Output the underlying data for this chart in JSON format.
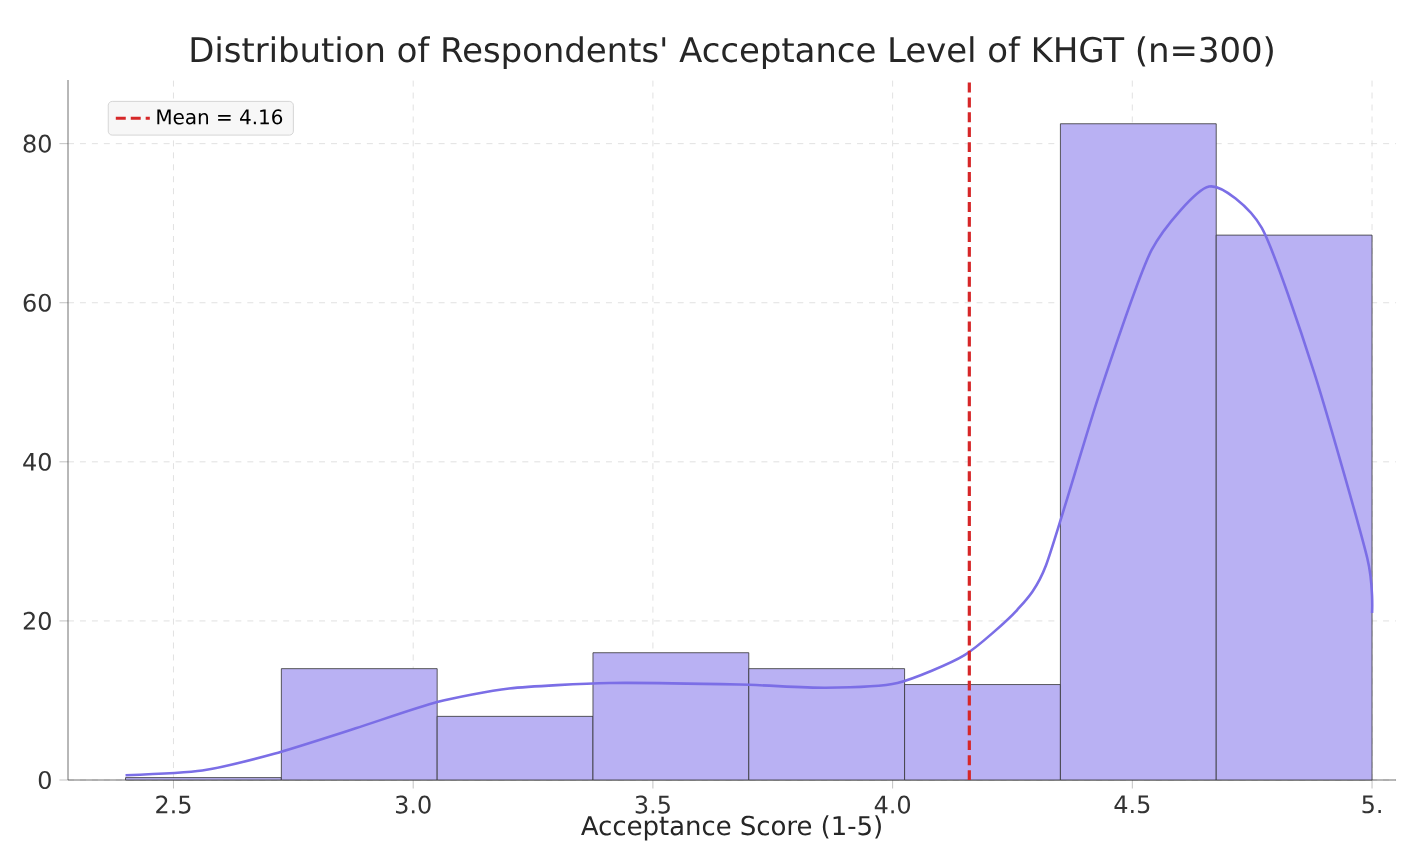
{
  "chart_data": {
    "type": "histogram",
    "title": "Distribution of Respondents' Acceptance Level of KHGT (n=300)",
    "xlabel": "Acceptance Score (1-5)",
    "bins": [
      2.4,
      2.725,
      3.05,
      3.375,
      3.7,
      4.025,
      4.35,
      4.675,
      5.0
    ],
    "values": [
      0.3,
      14,
      8,
      16,
      14,
      12,
      82.5,
      68.5
    ],
    "color": "#b9b1f3",
    "series": [
      {
        "type": "line",
        "color": "#7b6ee6",
        "x": [
          2.4,
          2.56,
          2.71,
          2.88,
          3.05,
          3.2,
          3.41,
          3.68,
          3.86,
          4.01,
          4.15,
          4.26,
          4.32,
          4.43,
          4.54,
          4.66,
          4.77,
          4.88,
          4.99,
          5.0
        ],
        "values": [
          0.6,
          1.2,
          3.3,
          6.5,
          9.8,
          11.5,
          12.2,
          12.0,
          11.6,
          12.2,
          15.7,
          21.4,
          27,
          48.3,
          66.6,
          74.6,
          69.4,
          51.1,
          27.9,
          21
        ]
      },
      {
        "type": "line",
        "name": "Mean = 4.16",
        "color": "#d62728",
        "line_style": "dashed",
        "x": [
          4.16,
          4.16
        ],
        "values": [
          0,
          88
        ]
      }
    ],
    "xlim": [
      2.28,
      5.05
    ],
    "ylim": [
      0,
      88
    ],
    "xticks": [
      2.5,
      {
        "value": 3.0,
        "label": "3.0"
      },
      3.5,
      {
        "value": 4.0,
        "label": "4.0"
      },
      4.5,
      {
        "value": 5.0,
        "label": "5."
      }
    ],
    "yticks": [
      0,
      20,
      40,
      60,
      80
    ],
    "grid": true,
    "legend": "top left"
  }
}
